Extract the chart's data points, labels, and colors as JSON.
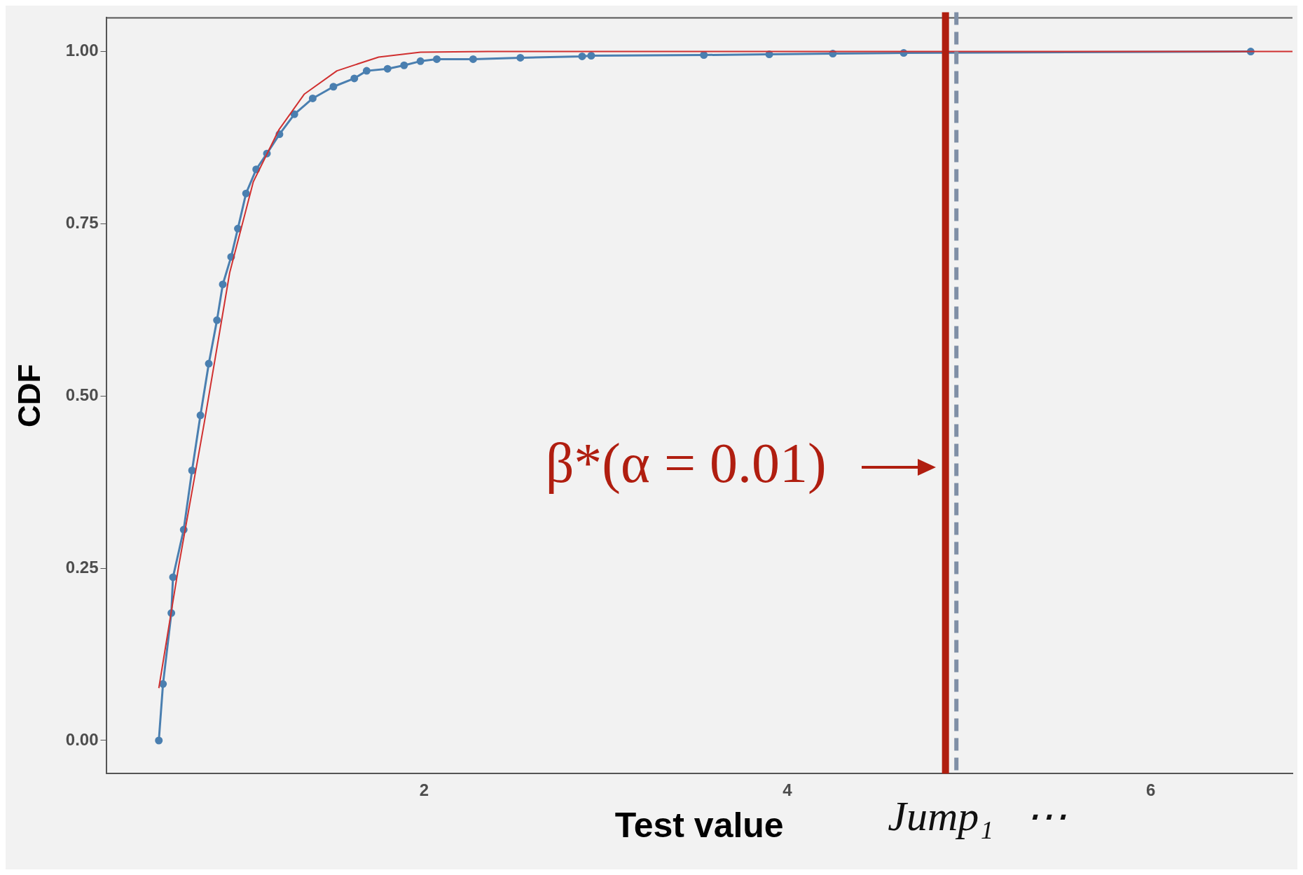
{
  "chart_data": {
    "type": "line",
    "xlabel": "Test value",
    "ylabel": "CDF",
    "xlim": [
      0.25,
      6.78
    ],
    "xticks": [
      2,
      4,
      6
    ],
    "ylim": [
      -0.048,
      1.049
    ],
    "yticks": [
      {
        "value": 0,
        "label": "0.00"
      },
      {
        "value": 0.25,
        "label": "0.25"
      },
      {
        "value": 0.5,
        "label": "0.50"
      },
      {
        "value": 0.75,
        "label": "0.75"
      },
      {
        "value": 1,
        "label": "1.00"
      }
    ],
    "grid": false,
    "legend": false,
    "series": [
      {
        "color": "#d03030",
        "marker": "none",
        "x": [
          0.54,
          0.65,
          0.79,
          0.93,
          1.06,
          1.2,
          1.34,
          1.52,
          1.75,
          1.98,
          2.35,
          6.78
        ],
        "values": [
          0.076,
          0.254,
          0.461,
          0.679,
          0.811,
          0.886,
          0.938,
          0.972,
          0.992,
          0.999,
          1.0,
          1.0
        ]
      },
      {
        "color": "#4a7fb0",
        "marker": "circle",
        "x": [
          0.54,
          0.563,
          0.609,
          0.618,
          0.677,
          0.723,
          0.769,
          0.815,
          0.86,
          0.892,
          0.938,
          0.975,
          1.02,
          1.076,
          1.135,
          1.204,
          1.286,
          1.387,
          1.501,
          1.616,
          1.684,
          1.799,
          1.89,
          1.98,
          2.07,
          2.27,
          2.53,
          2.87,
          2.92,
          3.54,
          3.9,
          4.25,
          4.64,
          6.55
        ],
        "values": [
          0,
          0.082,
          0.185,
          0.237,
          0.306,
          0.392,
          0.472,
          0.547,
          0.61,
          0.662,
          0.702,
          0.743,
          0.794,
          0.829,
          0.852,
          0.88,
          0.909,
          0.932,
          0.949,
          0.961,
          0.972,
          0.975,
          0.98,
          0.986,
          0.989,
          0.989,
          0.991,
          0.993,
          0.994,
          0.995,
          0.996,
          0.997,
          0.998,
          1.0
        ]
      }
    ],
    "ref_lines": [
      {
        "axis": "x",
        "value": 4.87,
        "color": "#b01e10",
        "line_style": "solid"
      },
      {
        "axis": "x",
        "value": 4.93,
        "label": "Jump₁   ⋯",
        "color": "#7f8fa6",
        "line_style": "dashed"
      }
    ],
    "annotations": [
      "β*(α = 0.01)"
    ]
  }
}
